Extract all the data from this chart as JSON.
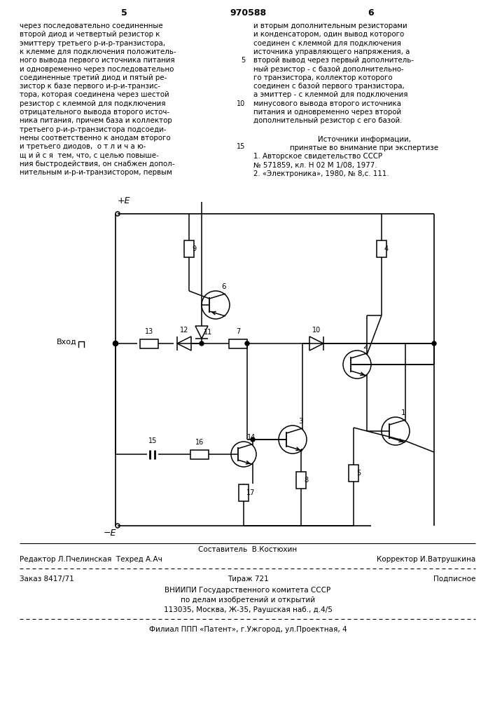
{
  "page_number_left": "5",
  "patent_number": "970588",
  "page_number_right": "6",
  "left_col_text": [
    "через последовательно соединенные",
    "второй диод и четвертый резистор к",
    "эмиттеру третьего р-и-р-транзистора,",
    "к клемме для подключения положитель-",
    "ного вывода первого источника питания",
    "и одновременно через последовательно",
    "соединенные третий диод и пятый ре-",
    "зистор к базе первого и-р-и-транзис-",
    "тора, которая соединена через шестой",
    "резистор с клеммой для подключения",
    "отрицательного вывода второго источ-",
    "ника питания, причем база и коллектор",
    "третьего р-и-р-транзистора подсоеди-",
    "нены соответственно к анодам второго",
    "и третьего диодов,  о т л и ч а ю-",
    "щ и й с я  тем, что, с целью повыше-",
    "ния быстродействия, он снабжен допол-",
    "нительным и-р-и-транзистором, первым"
  ],
  "line_numbers": {
    "4": 5,
    "9": 10,
    "14": 15
  },
  "right_col_text": [
    "и вторым дополнительным резисторами",
    "и конденсатором, один вывод которого",
    "соединен с клеммой для подключения",
    "источника управляющего напряжения, а",
    "второй вывод через первый дополнитель-",
    "ный резистор - с базой дополнительно-",
    "го транзистора, коллектор которого",
    "соединен с базой первого транзистора,",
    "а эмиттер - с клеммой для подключения",
    "минусового вывода второго источника",
    "питания и одновременно через второй",
    "дополнительный резистор с его базой."
  ],
  "sources_title": "Источники информации,",
  "sources_subtitle": "принятые во внимание при экспертизе",
  "source1": "1. Авторское свидетельство СССР",
  "source2": "№ 571859, кл. Н 02 М 1/08, 1977.",
  "source3": "2. «Электроника», 1980, № 8,с. 111.",
  "circuit_label_pe": "+E",
  "circuit_label_me": "−E",
  "circuit_label_input": "Вход",
  "composer": "Составитель  В.Костюхин",
  "editor": "Редактор Л.Пчелинская  Техред А.Ач",
  "corrector": "Корректор И.Ватрушкина",
  "order": "Заказ 8417/71",
  "tirazh": "Тираж 721",
  "podpisnoe": "Подписное",
  "vniip1": "ВНИИПИ Государственного комитета СССР",
  "vniip2": "по делам изобретений и открытий",
  "vniip3": "113035, Москва, Ж-35, Раушская наб., д.4/5",
  "filial": "Филиал ППП «Патент», г.Ужгород, ул.Проектная, 4",
  "bg_color": "#ffffff",
  "text_color": "#000000",
  "circuit_color": "#000000"
}
